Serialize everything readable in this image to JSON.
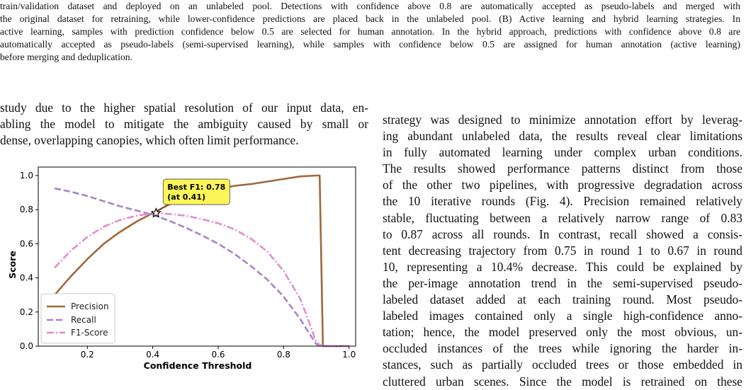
{
  "caption_lines": [
    "train/validation dataset and deployed on an unlabeled pool. Detections with confidence above 0.8 are automatically accepted as pseudo-labels and merged with",
    "the original dataset for retraining, while lower-confidence predictions are placed back in the unlabeled pool. (B) Active learning and hybrid learning strategies. In",
    "active learning, samples with prediction confidence below 0.5 are selected for human annotation. In the hybrid approach, predictions with confidence above 0.8 are",
    "automatically accepted as pseudo-labels (semi-supervised learning), while samples with confidence below 0.5 are assigned for human annotation (active learning)",
    "before merging and deduplication."
  ],
  "left_text_lines": [
    "study due to the higher spatial resolution of our input data, en-",
    "abling the model to mitigate the ambiguity caused by small or",
    "dense, overlapping canopies, which often limit performance."
  ],
  "right_text_lines": [
    "strategy was designed to minimize annotation effort by leverag-",
    "ing abundant unlabeled data, the results reveal clear limitations",
    "in fully automated learning under complex urban conditions.",
    "The results showed performance patterns distinct from those",
    "of the other two pipelines, with progressive degradation across",
    "the 10 iterative rounds (Fig. 4). Precision remained relatively",
    "stable, fluctuating between a relatively narrow range of 0.83",
    "to 0.87 across all rounds. In contrast, recall showed a consis-",
    "tent decreasing trajectory from 0.75 in round 1 to 0.67 in round",
    "10, representing a 10.4% decrease. This could be explained by",
    "the per-image annotation trend in the semi-supervised pseudo-",
    "labeled dataset added at each training round. Most pseudo-",
    "labeled images contained only a single high-confidence anno-",
    "tation; hence, the model preserved only the most obvious, un-",
    "occluded instances of the trees while ignoring the harder in-",
    "stances, such as partially occluded trees or those embedded in",
    "cluttered urban scenes. Since the model is retrained on these"
  ],
  "chart_data": {
    "type": "line",
    "title": "",
    "xlabel": "Confidence Threshold",
    "ylabel": "Score",
    "xlim": [
      0.05,
      1.02
    ],
    "ylim": [
      0.0,
      1.05
    ],
    "x_ticks": [
      0.2,
      0.4,
      0.6,
      0.8,
      1.0
    ],
    "x_tick_labels": [
      "0.2",
      "0.4",
      "0.6",
      "0.8",
      "1.0"
    ],
    "y_ticks": [
      0.0,
      0.2,
      0.4,
      0.6,
      0.8,
      1.0
    ],
    "y_tick_labels": [
      "0.0",
      "0.2",
      "0.4",
      "0.6",
      "0.8",
      "1.0"
    ],
    "grid": false,
    "legend_position": "lower-left",
    "series": [
      {
        "name": "Precision",
        "color": "#a0683a",
        "dash": "solid",
        "x": [
          0.1,
          0.15,
          0.2,
          0.25,
          0.3,
          0.35,
          0.4,
          0.45,
          0.5,
          0.55,
          0.6,
          0.65,
          0.7,
          0.75,
          0.8,
          0.85,
          0.9,
          0.91,
          0.92,
          1.0
        ],
        "y": [
          0.3,
          0.41,
          0.51,
          0.6,
          0.67,
          0.73,
          0.78,
          0.83,
          0.87,
          0.9,
          0.92,
          0.94,
          0.95,
          0.965,
          0.98,
          0.995,
          1.0,
          1.0,
          0.0,
          0.0
        ]
      },
      {
        "name": "Recall",
        "color": "#a784c9",
        "dash": "dashed",
        "x": [
          0.1,
          0.15,
          0.2,
          0.25,
          0.3,
          0.35,
          0.4,
          0.45,
          0.5,
          0.55,
          0.6,
          0.65,
          0.7,
          0.75,
          0.8,
          0.85,
          0.88,
          0.9,
          0.92,
          1.0
        ],
        "y": [
          0.925,
          0.905,
          0.88,
          0.85,
          0.82,
          0.795,
          0.77,
          0.735,
          0.695,
          0.65,
          0.6,
          0.54,
          0.47,
          0.39,
          0.29,
          0.16,
          0.07,
          0.01,
          0.0,
          0.0
        ]
      },
      {
        "name": "F1-Score",
        "color": "#e58ccd",
        "dash": "dashdot",
        "x": [
          0.1,
          0.15,
          0.2,
          0.25,
          0.3,
          0.35,
          0.41,
          0.45,
          0.5,
          0.55,
          0.6,
          0.65,
          0.7,
          0.75,
          0.8,
          0.85,
          0.88,
          0.9,
          0.92,
          1.0
        ],
        "y": [
          0.46,
          0.56,
          0.64,
          0.7,
          0.74,
          0.765,
          0.78,
          0.775,
          0.765,
          0.745,
          0.72,
          0.685,
          0.63,
          0.555,
          0.44,
          0.28,
          0.13,
          0.02,
          0.0,
          0.0
        ]
      }
    ],
    "annotation": {
      "text_line1": "Best F1: 0.78",
      "text_line2": "(at 0.41)",
      "x": 0.41,
      "y": 0.78,
      "marker": "star",
      "box_color": "#fbf55a"
    }
  }
}
